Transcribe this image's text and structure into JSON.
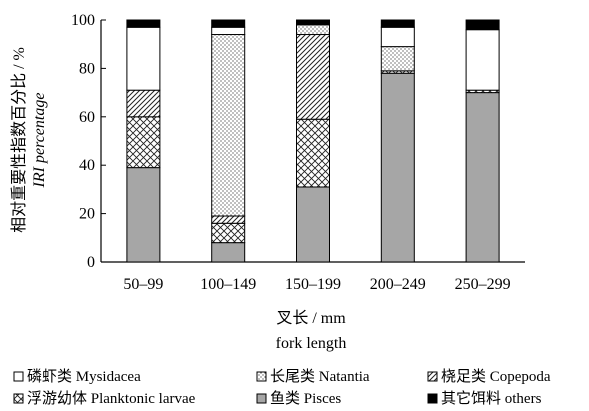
{
  "chart_data": {
    "type": "bar",
    "stacked": true,
    "categories": [
      "50–99",
      "100–149",
      "150–199",
      "200–249",
      "250–299"
    ],
    "ylim": [
      0,
      100
    ],
    "yticks": [
      0,
      20,
      40,
      60,
      80,
      100
    ],
    "ylabel": "相对重要性指数百分比 / %",
    "ylabel2": "IRI percentage",
    "xlabel": "叉长 / mm",
    "xlabel2": "fork length",
    "series": [
      {
        "name": "鱼类 Pisces",
        "pattern": "gray",
        "values": [
          39,
          8,
          31,
          78,
          70
        ]
      },
      {
        "name": "浮游幼体 Planktonic larvae",
        "pattern": "crosshatch",
        "values": [
          21,
          8,
          28,
          1,
          1
        ]
      },
      {
        "name": "桡足类 Copepoda",
        "pattern": "diagonal",
        "values": [
          11,
          3,
          35,
          0,
          0
        ]
      },
      {
        "name": "长尾类 Natantia",
        "pattern": "dots",
        "values": [
          0,
          75,
          4,
          10,
          0
        ]
      },
      {
        "name": "磷虾类 Mysidacea",
        "pattern": "white",
        "values": [
          26,
          3,
          0,
          8,
          25
        ]
      },
      {
        "name": "其它饵料 others",
        "pattern": "black",
        "values": [
          3,
          3,
          2,
          3,
          4
        ]
      }
    ],
    "legend_order": [
      "磷虾类 Mysidacea",
      "长尾类 Natantia",
      "桡足类 Copepoda",
      "浮游幼体 Planktonic larvae",
      "鱼类 Pisces",
      "其它饵料 others"
    ],
    "legend_position": "bottom",
    "grid": false
  }
}
